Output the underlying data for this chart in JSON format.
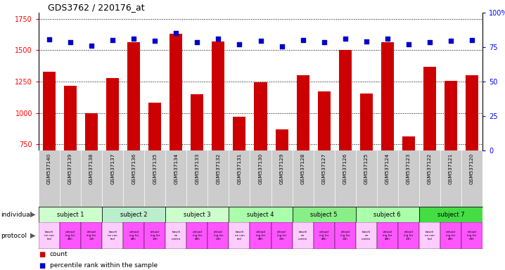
{
  "title": "GDS3762 / 220176_at",
  "samples": [
    "GSM537140",
    "GSM537139",
    "GSM537138",
    "GSM537137",
    "GSM537136",
    "GSM537135",
    "GSM537134",
    "GSM537133",
    "GSM537132",
    "GSM537131",
    "GSM537130",
    "GSM537129",
    "GSM537128",
    "GSM537127",
    "GSM537126",
    "GSM537125",
    "GSM537124",
    "GSM537123",
    "GSM537122",
    "GSM537121",
    "GSM537120"
  ],
  "counts": [
    1330,
    1215,
    1000,
    1280,
    1565,
    1080,
    1630,
    1150,
    1570,
    970,
    1245,
    870,
    1300,
    1170,
    1500,
    1155,
    1565,
    810,
    1370,
    1255,
    1300
  ],
  "percentile_vals": [
    1585,
    1565,
    1535,
    1580,
    1595,
    1575,
    1640,
    1565,
    1590,
    1545,
    1575,
    1530,
    1580,
    1565,
    1590,
    1570,
    1590,
    1545,
    1565,
    1575,
    1580
  ],
  "ylim_left": [
    700,
    1800
  ],
  "yticks_left": [
    750,
    1000,
    1250,
    1500,
    1750
  ],
  "ylim_right": [
    0,
    100
  ],
  "yticks_right": [
    0,
    25,
    50,
    75,
    100
  ],
  "bar_color": "#cc0000",
  "dot_color": "#0000cc",
  "subjects": [
    {
      "name": "subject 1",
      "start": 0,
      "end": 3,
      "color": "#ccffcc"
    },
    {
      "name": "subject 2",
      "start": 3,
      "end": 6,
      "color": "#bbeecc"
    },
    {
      "name": "subject 3",
      "start": 6,
      "end": 9,
      "color": "#ccffcc"
    },
    {
      "name": "subject 4",
      "start": 9,
      "end": 12,
      "color": "#aaffaa"
    },
    {
      "name": "subject 5",
      "start": 12,
      "end": 15,
      "color": "#88ee88"
    },
    {
      "name": "subject 6",
      "start": 15,
      "end": 18,
      "color": "#aaffaa"
    },
    {
      "name": "subject 7",
      "start": 18,
      "end": 21,
      "color": "#44dd44"
    }
  ],
  "prot_colors": [
    "#ffccff",
    "#ff55ff",
    "#ff55ff",
    "#ffccff",
    "#ff55ff",
    "#ff55ff",
    "#ffccff",
    "#ff55ff",
    "#ff55ff",
    "#ffccff",
    "#ff55ff",
    "#ff55ff",
    "#ffccff",
    "#ff55ff",
    "#ff55ff",
    "#ffccff",
    "#ff55ff",
    "#ff55ff",
    "#ffccff",
    "#ff55ff",
    "#ff55ff"
  ],
  "prot_labels": [
    "baseli\nne con\ntrol",
    "unload\ning for\n48h",
    "reload\ning for\n24h",
    "baseli\nne con\ntrol",
    "unload\ning for\n48h",
    "reload\ning for\n24h",
    "baseli\nne\ncontro",
    "unload\ning for\n48h",
    "reload\ning for\n24h",
    "baseli\nne con\ntrol",
    "unload\ning for\n48h",
    "reload\ning for\n24h",
    "baseli\nne\ncontro",
    "unload\ning for\n48h",
    "reload\ning for\n24h",
    "baseli\nne\ncontro",
    "unload\ning for\n48h",
    "reload\ning for\n24h",
    "baseli\nne con\ntrol",
    "unload\ning for\n48h",
    "reload\ning for\n24h"
  ],
  "gsm_row_color": "#cccccc",
  "bg_color": "#ffffff"
}
